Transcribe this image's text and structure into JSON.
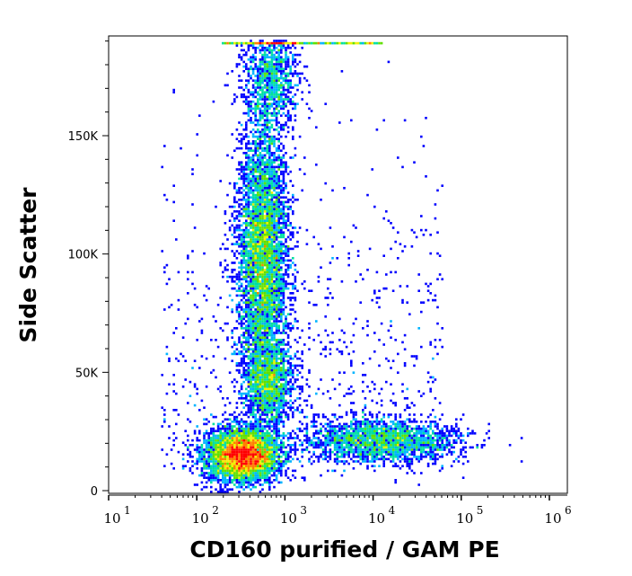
{
  "chart_data": {
    "type": "heatmap",
    "subtype": "flow-cytometry density dot plot",
    "xlabel": "CD160 purified / GAM PE",
    "ylabel": "Side Scatter",
    "x_scale": "log",
    "xlim": [
      10,
      1600000
    ],
    "ylim": [
      0,
      190000
    ],
    "x_ticks": [
      {
        "base": "10",
        "exp": "1",
        "value": 10
      },
      {
        "base": "10",
        "exp": "2",
        "value": 100
      },
      {
        "base": "10",
        "exp": "3",
        "value": 1000
      },
      {
        "base": "10",
        "exp": "4",
        "value": 10000
      },
      {
        "base": "10",
        "exp": "5",
        "value": 100000
      },
      {
        "base": "10",
        "exp": "6",
        "value": 1000000
      }
    ],
    "y_ticks": [
      {
        "label": "0",
        "value": 0
      },
      {
        "label": "50K",
        "value": 50000
      },
      {
        "label": "100K",
        "value": 100000
      },
      {
        "label": "150K",
        "value": 150000
      }
    ],
    "grid": false,
    "color_scale": [
      "#0000ff",
      "#00b4ff",
      "#00e0a0",
      "#60e000",
      "#f0f000",
      "#ff8000",
      "#ff0000"
    ],
    "populations": [
      {
        "center_x": 330,
        "center_y": 15000,
        "spread_log_x": 0.2,
        "spread_y": 5500,
        "relative_events": 5000
      },
      {
        "center_x": 560,
        "center_y": 100000,
        "spread_log_x": 0.14,
        "spread_y": 28000,
        "relative_events": 5500
      },
      {
        "center_x": 650,
        "center_y": 45000,
        "spread_log_x": 0.14,
        "spread_y": 9000,
        "relative_events": 1500
      },
      {
        "center_x": 12000,
        "center_y": 21000,
        "spread_log_x": 0.45,
        "spread_y": 4500,
        "relative_events": 2200
      },
      {
        "center_x": 700,
        "center_y": 175000,
        "spread_log_x": 0.15,
        "spread_y": 12000,
        "relative_events": 1200
      }
    ]
  }
}
